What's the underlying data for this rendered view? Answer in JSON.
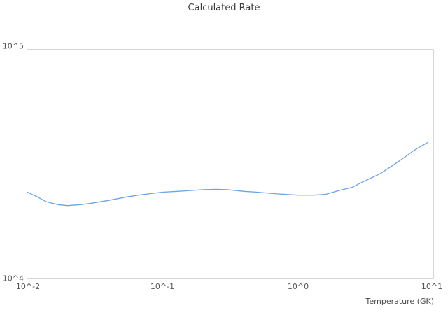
{
  "title": "Calculated Rate",
  "x_axis": {
    "label": "Temperature (GK)",
    "tick_labels": [
      "10^-2",
      "10^-1",
      "10^0",
      "10^1"
    ]
  },
  "y_axis": {
    "tick_labels_top_to_bottom": [
      "10^5",
      "10^4"
    ],
    "top_label": "10^5",
    "bottom_label": "10^4"
  },
  "colors": {
    "line": "#6ba3e5",
    "frame": "#d7d7d7",
    "title_text": "#3a3a3a",
    "tick_text": "#545454",
    "background": "#ffffff"
  },
  "chart_data": {
    "type": "line",
    "title": "Calculated Rate",
    "xlabel": "Temperature (GK)",
    "ylabel": "",
    "x_scale": "log",
    "y_scale": "log",
    "xlim": [
      0.01,
      10
    ],
    "ylim": [
      10000,
      100000
    ],
    "grid": false,
    "legend": false,
    "series": [
      {
        "name": "Calculated Rate",
        "x": [
          0.01,
          0.012,
          0.014,
          0.017,
          0.02,
          0.025,
          0.03,
          0.04,
          0.055,
          0.07,
          0.1,
          0.13,
          0.16,
          0.2,
          0.25,
          0.3,
          0.4,
          0.5,
          0.7,
          1.0,
          1.3,
          1.6,
          2.0,
          2.5,
          3.0,
          4.0,
          5.0,
          6.0,
          7.0,
          8.0,
          9.0
        ],
        "y": [
          23900,
          22700,
          21600,
          21000,
          20800,
          21000,
          21300,
          21900,
          22700,
          23200,
          23800,
          24000,
          24200,
          24400,
          24500,
          24400,
          24000,
          23800,
          23400,
          23100,
          23100,
          23300,
          24200,
          25000,
          26400,
          28600,
          31200,
          33600,
          35900,
          37700,
          39200
        ]
      }
    ]
  }
}
